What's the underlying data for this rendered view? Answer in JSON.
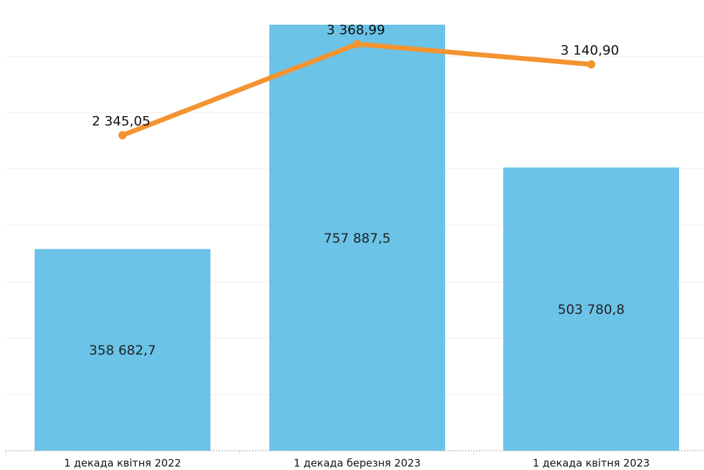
{
  "chart_data": {
    "type": "bar",
    "categories": [
      "1 декада квітня 2022",
      "1 декада березня 2023",
      "1 декада квітня 2023"
    ],
    "series": [
      {
        "type": "bar",
        "values": [
          358682.7,
          757887.5,
          503780.8
        ],
        "labels": [
          "358 682,7",
          "757 887,5",
          "503 780,8"
        ],
        "color": "#6BC3E8"
      },
      {
        "type": "line",
        "values": [
          2345.05,
          3368.99,
          3140.9
        ],
        "labels": [
          "2 345,05",
          "3 368,99",
          "3 140,90"
        ],
        "color": "#F39431"
      }
    ],
    "bar_axis_range": [
      0,
      760000
    ],
    "line_axis_range": [
      -1200,
      3600
    ],
    "grid": true,
    "legend": "none",
    "title": "",
    "xlabel": "",
    "ylabel": ""
  }
}
